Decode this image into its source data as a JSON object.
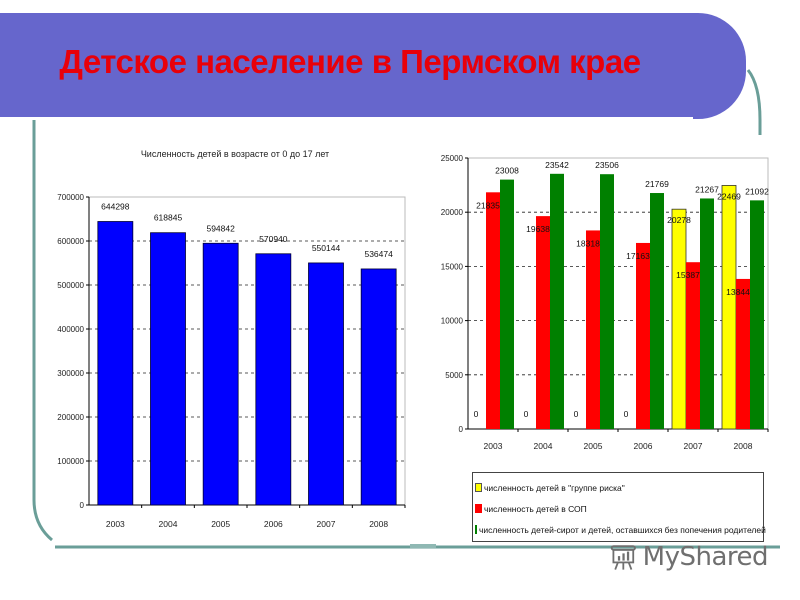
{
  "slide": {
    "title": "Детское население в Пермском крае",
    "colors": {
      "banner": "#6666cc",
      "title": "#e8000a",
      "decoration": "#6a9e98"
    }
  },
  "watermark": {
    "text": "MyShared",
    "icon": "presentation-board-icon"
  },
  "chart_data": [
    {
      "type": "bar",
      "title": "Численность детей в возрасте от 0 до 17 лет",
      "xlabel": "",
      "ylabel": "",
      "categories": [
        "2003",
        "2004",
        "2005",
        "2006",
        "2007",
        "2008"
      ],
      "values": [
        644298,
        618845,
        594842,
        570940,
        550144,
        536474
      ],
      "data_labels": [
        "644298",
        "618845",
        "594842",
        "570940",
        "550144",
        "536474"
      ],
      "ylim": [
        0,
        700000
      ],
      "yticks": [
        "0",
        "100000",
        "200000",
        "300000",
        "400000",
        "500000",
        "600000",
        "700000"
      ],
      "grid": "dashed horizontal",
      "legend": "none",
      "color": "#0000ff"
    },
    {
      "type": "bar",
      "title": "",
      "xlabel": "",
      "ylabel": "",
      "categories": [
        "2003",
        "2004",
        "2005",
        "2006",
        "2007",
        "2008"
      ],
      "series": [
        {
          "name": "численность детей в \"группе риска\"",
          "color": "#ffff00",
          "values": [
            0,
            0,
            0,
            0,
            20278,
            22469
          ],
          "labels": [
            "0",
            "0",
            "0",
            "0",
            "20278",
            "22469"
          ]
        },
        {
          "name": "численность детей в СОП",
          "color": "#ff0000",
          "values": [
            21835,
            19638,
            18318,
            17163,
            15387,
            13844
          ],
          "labels": [
            "21835",
            "19638",
            "18318",
            "17163",
            "15387",
            "13844"
          ]
        },
        {
          "name": "численность детей-сирот и детей, оставшихся без попечения родителей",
          "color": "#008000",
          "values": [
            23008,
            23542,
            23506,
            21769,
            21267,
            21092
          ],
          "labels": [
            "23008",
            "23542",
            "23506",
            "21769",
            "21267",
            "21092"
          ]
        }
      ],
      "ylim": [
        0,
        25000
      ],
      "yticks": [
        "0",
        "5000",
        "10000",
        "15000",
        "20000",
        "25000"
      ],
      "grid": "dashed horizontal",
      "legend": "bottom (boxed)"
    }
  ]
}
